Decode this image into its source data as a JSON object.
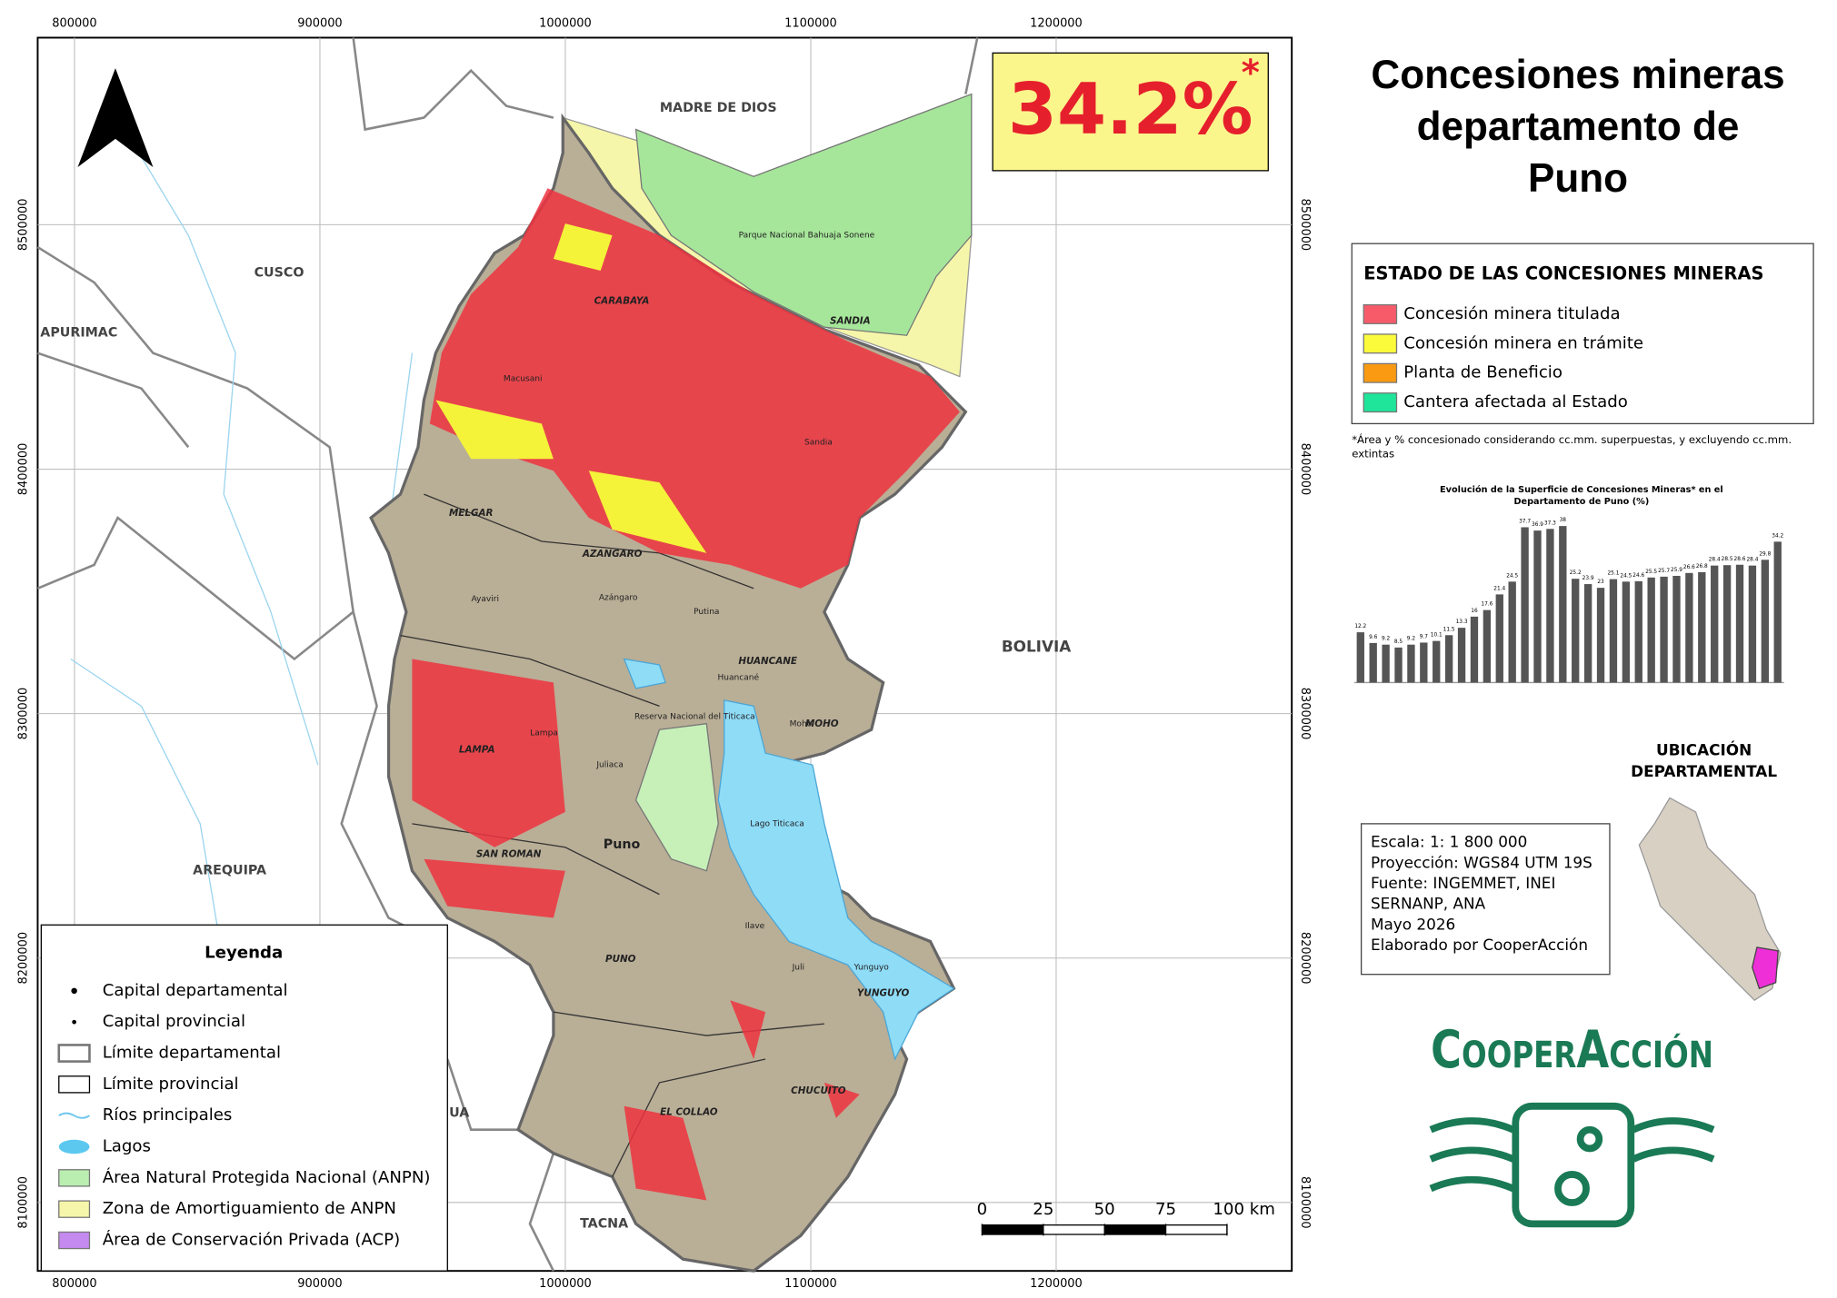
{
  "title": [
    "Concesiones mineras",
    "departamento de",
    "Puno"
  ],
  "headline": {
    "text": "34.2%",
    "mark": "*"
  },
  "map": {
    "xlim": [
      785000,
      1296000
    ],
    "ylim": [
      8072000,
      8576500
    ],
    "xticks": [
      800000,
      900000,
      1000000,
      1100000,
      1200000
    ],
    "yticks": [
      8100000,
      8200000,
      8300000,
      8400000,
      8500000
    ],
    "region_labels": [
      "MADRE DE DIOS",
      "CUSCO",
      "APURIMAC",
      "AREQUIPA",
      "BOLIVIA",
      "TACNA",
      "UA"
    ],
    "province_labels": [
      "CARABAYA",
      "SANDIA",
      "MELGAR",
      "AZANGARO",
      "HUANCANE",
      "MOHO",
      "LAMPA",
      "SAN ROMAN",
      "PUNO",
      "EL COLLAO",
      "CHUCUITO",
      "YUNGUYO"
    ],
    "place_labels": [
      "Macusani",
      "Sandia",
      "Ayaviri",
      "Azángaro",
      "Putina",
      "Huancané",
      "Moho",
      "Lampa",
      "Juliaca",
      "Puno",
      "Ilave",
      "Juli",
      "Yunguyo",
      "Lago Titicaca",
      "Parque Nacional Bahuaja Sonene",
      "Reserva Nacional del Titicaca"
    ]
  },
  "legend": {
    "title": "Leyenda",
    "items": [
      {
        "label": "Capital departamental"
      },
      {
        "label": "Capital provincial"
      },
      {
        "label": "Límite departamental"
      },
      {
        "label": "Límite provincial"
      },
      {
        "label": "Ríos principales",
        "color": "#6ec6ec"
      },
      {
        "label": "Lagos",
        "color": "#5cc8f0"
      },
      {
        "label": "Área Natural Protegida Nacional (ANPN)",
        "color": "#b9eeb0"
      },
      {
        "label": "Zona de Amortiguamiento de ANPN",
        "color": "#f6f6aa"
      },
      {
        "label": "Área de Conservación Privada (ACP)",
        "color": "#c58af0"
      }
    ]
  },
  "status_legend": {
    "title": "ESTADO DE LAS CONCESIONES MINERAS",
    "items": [
      {
        "label": "Concesión minera titulada",
        "color": "#f75b6a"
      },
      {
        "label": "Concesión minera en trámite",
        "color": "#fbfb3c"
      },
      {
        "label": "Planta de Beneficio",
        "color": "#f99a12"
      },
      {
        "label": "Cantera afectada al Estado",
        "color": "#1fe59a"
      }
    ]
  },
  "note": [
    "*Área y % concesionado considerando cc.mm. superpuestas, y excluyendo cc.mm.",
    "extintas"
  ],
  "chart_data": {
    "type": "bar",
    "title": [
      "Evolución de la Superficie de Concesiones Mineras* en el",
      "Departamento de Puno (%)"
    ],
    "values": [
      12.2,
      9.6,
      9.2,
      8.5,
      9.2,
      9.7,
      10.1,
      11.5,
      13.3,
      16.0,
      17.6,
      21.4,
      24.5,
      37.7,
      36.9,
      37.3,
      38.0,
      25.2,
      23.9,
      23.0,
      25.1,
      24.5,
      24.6,
      25.5,
      25.7,
      25.9,
      26.6,
      26.8,
      28.4,
      28.5,
      28.6,
      28.4,
      29.8,
      34.2
    ],
    "color": "#555555",
    "ylim": [
      0,
      40
    ]
  },
  "location": {
    "title": [
      "UBICACIÓN",
      "DEPARTAMENTAL"
    ]
  },
  "info": [
    "Escala: 1: 1 800 000",
    "Proyección: WGS84 UTM 19S",
    "Fuente: INGEMMET, INEI",
    "SERNANP, ANA",
    "Mayo 2026",
    "Elaborado por CooperAcción"
  ],
  "scale_bar": {
    "ticks": [
      0,
      25,
      50,
      75,
      {
        "value": 100,
        "label": "100 km"
      }
    ]
  },
  "logo": "CooperAcción"
}
